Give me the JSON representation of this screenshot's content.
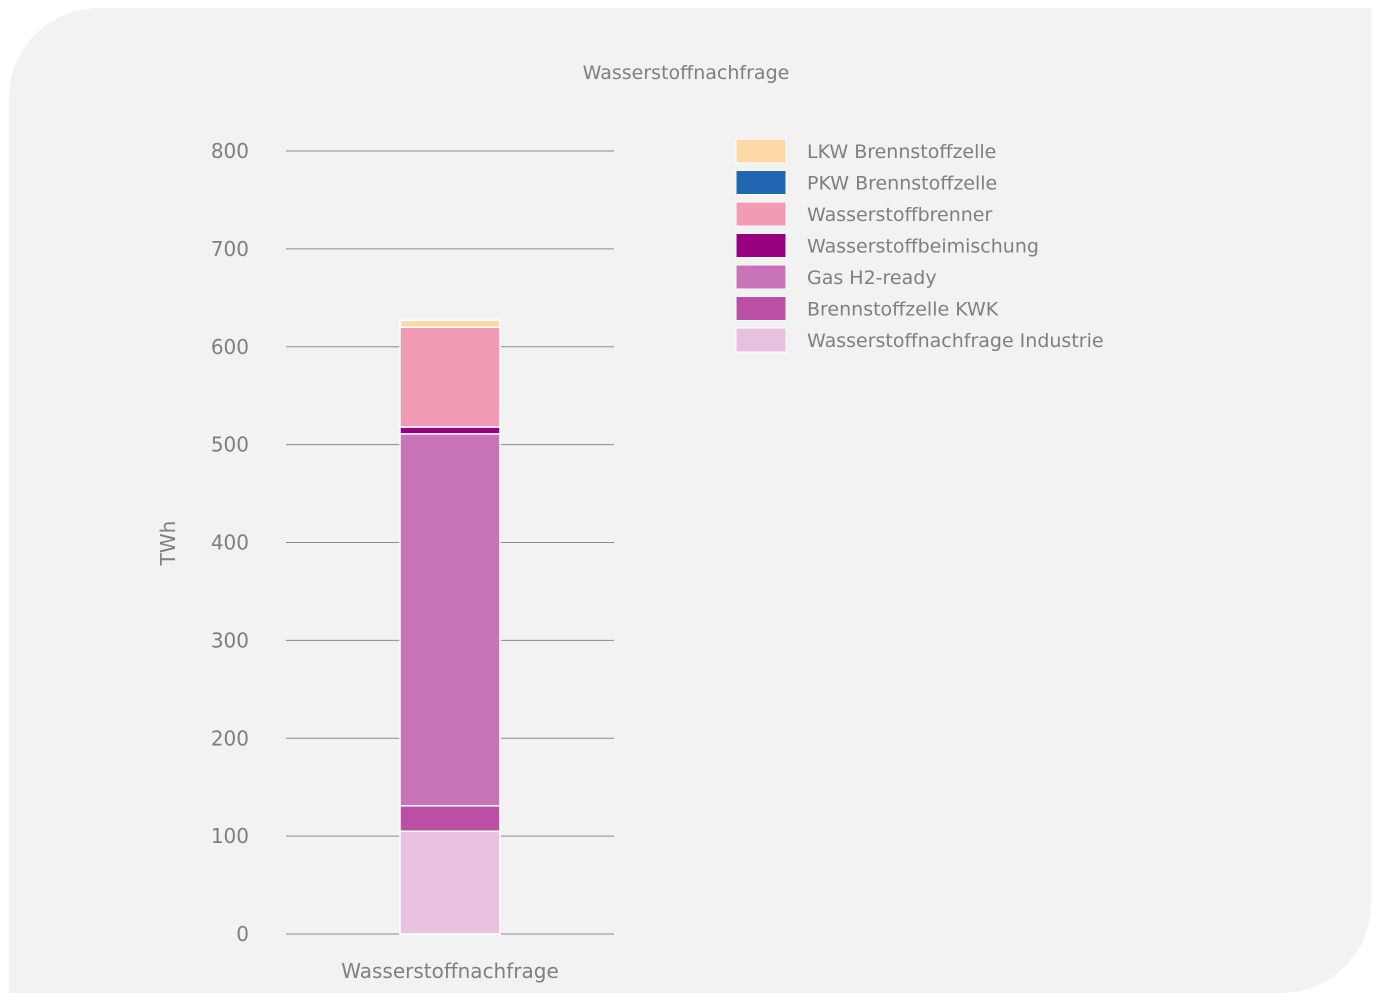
{
  "chart_data": {
    "type": "bar",
    "stacked": true,
    "title": "Wasserstoffnachfrage",
    "ylabel": "TWh",
    "xlabel": "",
    "categories": [
      "Wasserstoffnachfrage"
    ],
    "ylim": [
      0,
      800
    ],
    "yticks": [
      0,
      100,
      200,
      300,
      400,
      500,
      600,
      700,
      800
    ],
    "grid": true,
    "legend_position": "right",
    "series": [
      {
        "name": "Wasserstoffnachfrage Industrie",
        "values": [
          105
        ],
        "color": "#e8c1df"
      },
      {
        "name": "Brennstoffzelle KWK",
        "values": [
          26
        ],
        "color": "#bb4fa5"
      },
      {
        "name": "Gas H2-ready",
        "values": [
          380
        ],
        "color": "#c974b8"
      },
      {
        "name": "Wasserstoffbeimischung",
        "values": [
          7
        ],
        "color": "#99007f"
      },
      {
        "name": "Wasserstoffbrenner",
        "values": [
          102
        ],
        "color": "#f29bb5"
      },
      {
        "name": "PKW Brennstoffzelle",
        "values": [
          0
        ],
        "color": "#2166b0"
      },
      {
        "name": "LKW Brennstoffzelle",
        "values": [
          7
        ],
        "color": "#ffd8a8"
      }
    ],
    "legend_order": [
      "LKW Brennstoffzelle",
      "PKW Brennstoffzelle",
      "Wasserstoffbrenner",
      "Wasserstoffbeimischung",
      "Gas H2-ready",
      "Brennstoffzelle KWK",
      "Wasserstoffnachfrage Industrie"
    ]
  }
}
